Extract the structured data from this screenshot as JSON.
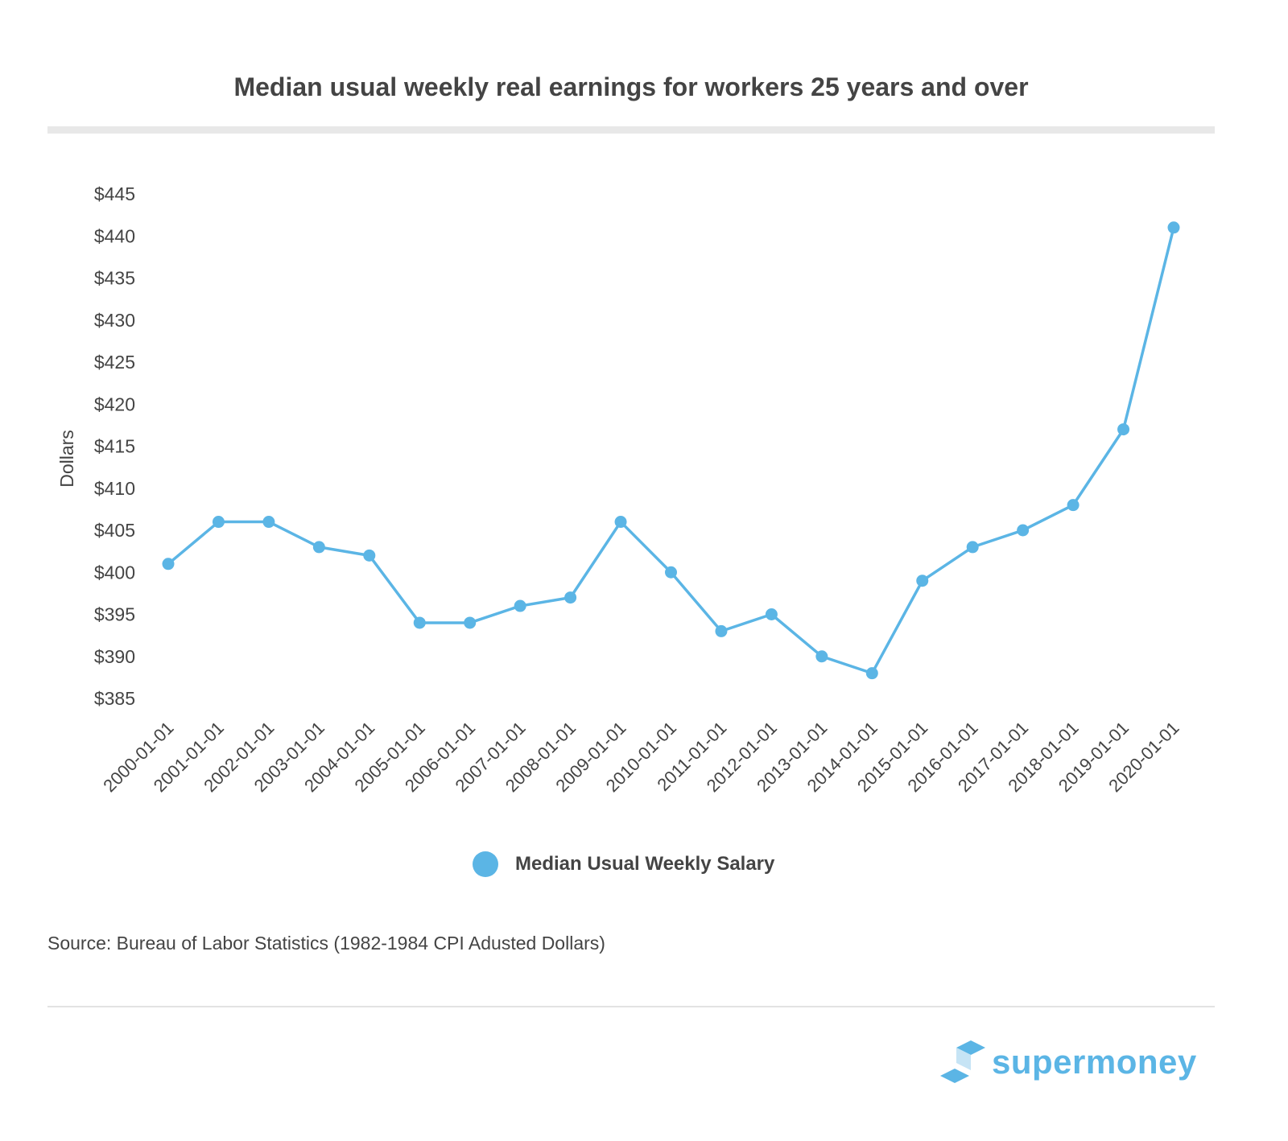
{
  "chart_data": {
    "type": "line",
    "title": "Median usual weekly real earnings for workers 25 years and over",
    "ylabel": "Dollars",
    "xlabel": "",
    "ylim": [
      385,
      445
    ],
    "yticks": [
      385,
      390,
      395,
      400,
      405,
      410,
      415,
      420,
      425,
      430,
      435,
      440,
      445
    ],
    "ytick_prefix": "$",
    "grid": false,
    "legend_placement": "bottom",
    "categories": [
      "2000-01-01",
      "2001-01-01",
      "2002-01-01",
      "2003-01-01",
      "2004-01-01",
      "2005-01-01",
      "2006-01-01",
      "2007-01-01",
      "2008-01-01",
      "2009-01-01",
      "2010-01-01",
      "2011-01-01",
      "2012-01-01",
      "2013-01-01",
      "2014-01-01",
      "2015-01-01",
      "2016-01-01",
      "2017-01-01",
      "2018-01-01",
      "2019-01-01",
      "2020-01-01"
    ],
    "series": [
      {
        "name": "Median Usual Weekly Salary",
        "color": "#5bb5e5",
        "values": [
          401,
          406,
          406,
          403,
          402,
          394,
          394,
          396,
          397,
          406,
          400,
          393,
          395,
          390,
          388,
          399,
          403,
          405,
          408,
          417,
          441
        ]
      }
    ]
  },
  "source": "Source: Bureau of Labor Statistics (1982-1984 CPI Adusted Dollars)",
  "logo": {
    "text": "supermoney",
    "color": "#5bb5e5"
  }
}
